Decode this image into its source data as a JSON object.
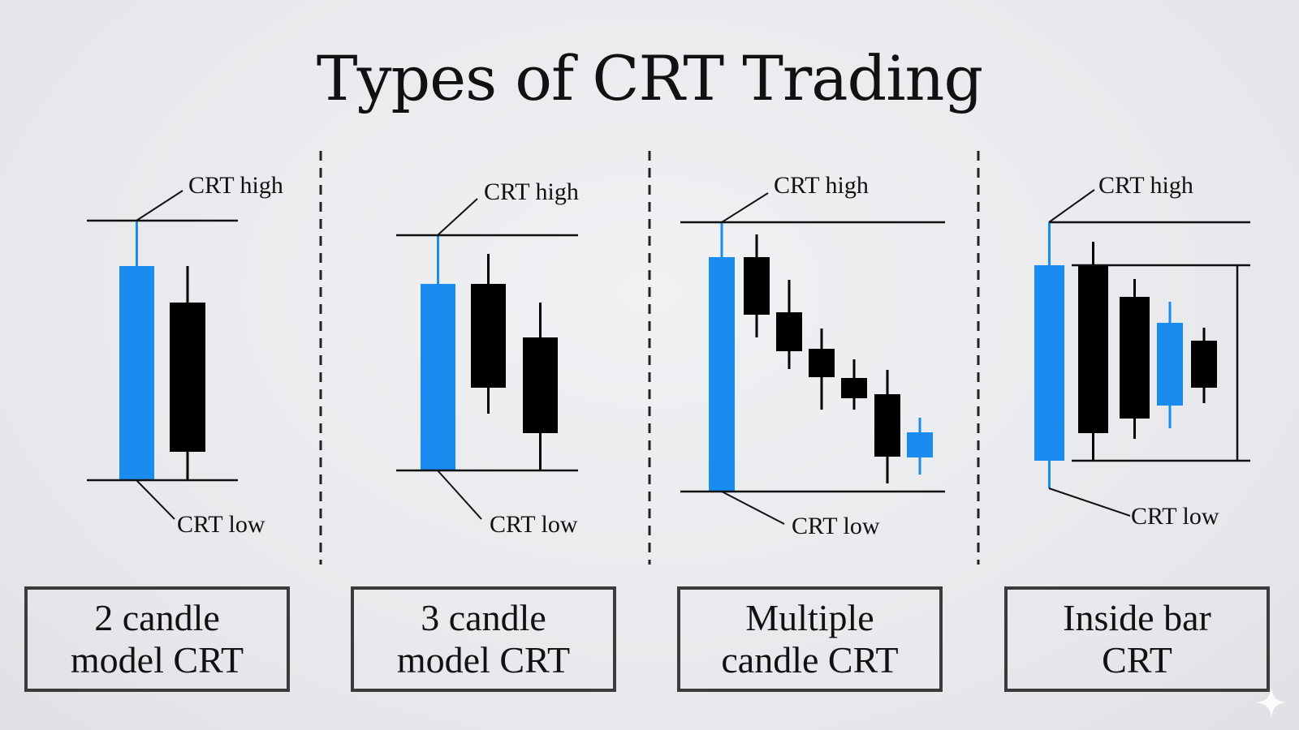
{
  "title": "Types of CRT Trading",
  "colors": {
    "bull": "#1a8cf0",
    "bear": "#000000",
    "line": "#111111",
    "divider": "#222222"
  },
  "panels": [
    {
      "high_label": "CRT high",
      "low_label": "CRT low",
      "caption": "2 candle\nmodel CRT"
    },
    {
      "high_label": "CRT high",
      "low_label": "CRT low",
      "caption": "3 candle\nmodel CRT"
    },
    {
      "high_label": "CRT high",
      "low_label": "CRT low",
      "caption": "Multiple\ncandle CRT"
    },
    {
      "high_label": "CRT high",
      "low_label": "CRT low",
      "caption": "Inside bar\nCRT"
    }
  ]
}
